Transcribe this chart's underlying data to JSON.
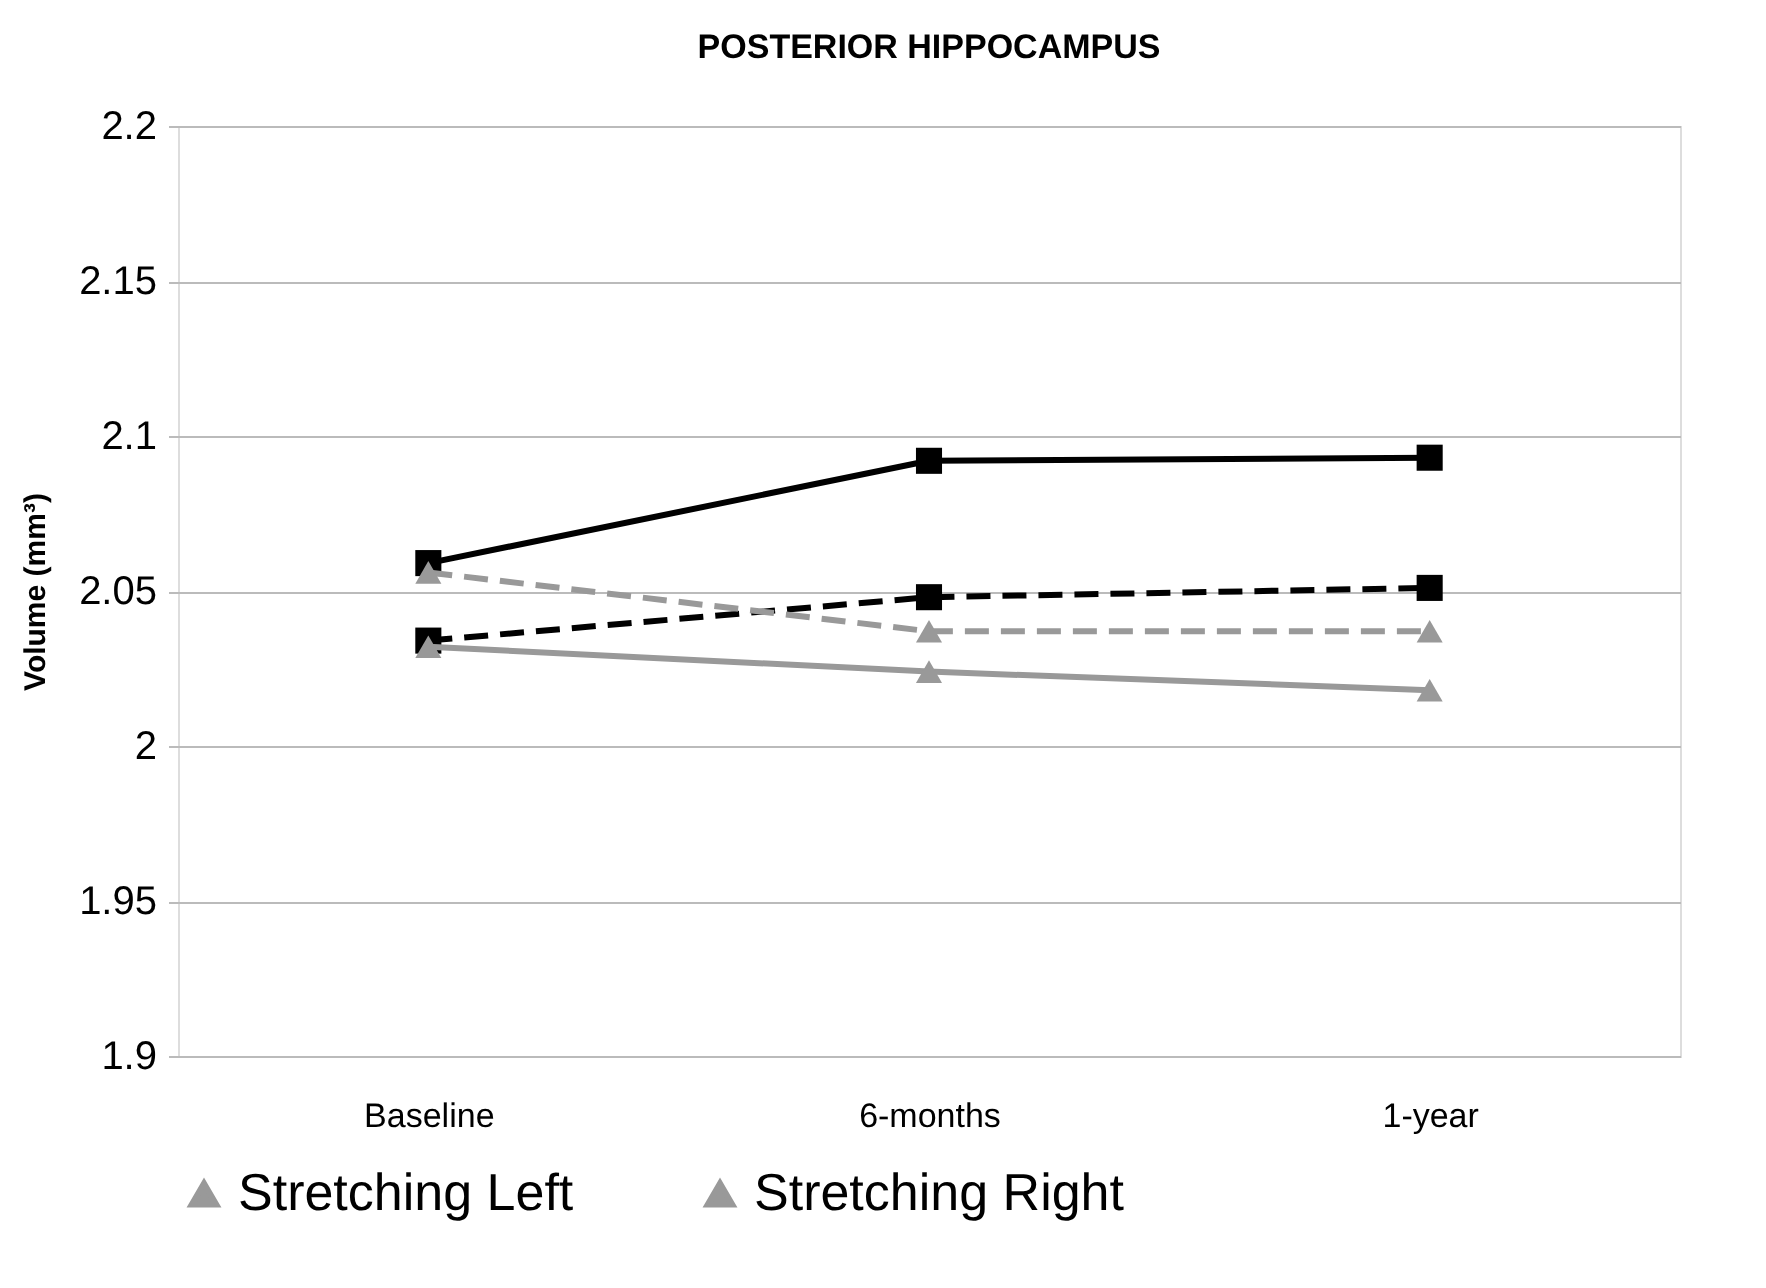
{
  "chart_data": {
    "type": "line",
    "title": "POSTERIOR HIPPOCAMPUS",
    "ylabel": "Volume (mm³)",
    "categories": [
      "Baseline",
      "6-months",
      "1-year"
    ],
    "series": [
      {
        "color": "#000000",
        "values": [
          2.059,
          2.092,
          2.093
        ],
        "marker": "square",
        "line_style": "solid"
      },
      {
        "color": "#000000",
        "values": [
          2.034,
          2.048,
          2.051
        ],
        "marker": "square",
        "line_style": "dashed"
      },
      {
        "name": "Stretching Left",
        "color": "#999999",
        "values": [
          2.056,
          2.037,
          2.037
        ],
        "marker": "triangle",
        "line_style": "dashed"
      },
      {
        "name": "Stretching Right",
        "color": "#999999",
        "values": [
          2.032,
          2.024,
          2.018
        ],
        "marker": "triangle",
        "line_style": "solid"
      }
    ],
    "ylim": [
      1.9,
      2.2
    ],
    "yticks": [
      1.9,
      1.95,
      2,
      2.05,
      2.1,
      2.15,
      2.2
    ],
    "grid": "y",
    "legend": "bottom"
  }
}
